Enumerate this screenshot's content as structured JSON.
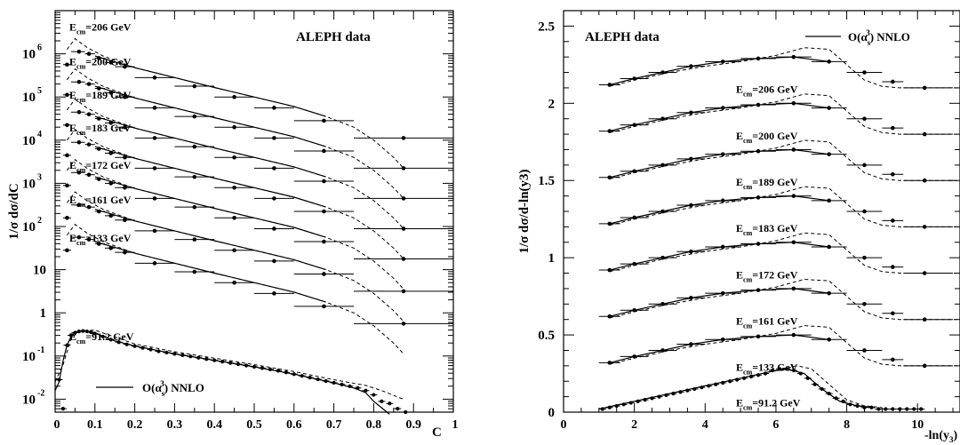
{
  "chart_data": [
    {
      "type": "line",
      "title": "ALEPH data",
      "ylabel": "1/σ dσ/dC",
      "xlabel": "C",
      "xlim": [
        0,
        1
      ],
      "ylog": true,
      "yrange_decades": [
        -2.3,
        7.0
      ],
      "xticks": [
        "0",
        "0.1",
        "0.2",
        "0.3",
        "0.4",
        "0.5",
        "0.6",
        "0.7",
        "0.8",
        "0.9",
        "1"
      ],
      "yticks": [
        {
          "base": "10",
          "exp": "-2",
          "v": -2
        },
        {
          "base": "10",
          "exp": "-1",
          "v": -1
        },
        {
          "base": "1",
          "exp": "",
          "v": 0
        },
        {
          "base": "10",
          "exp": "",
          "v": 1
        },
        {
          "base": "10",
          "exp": "2",
          "v": 2
        },
        {
          "base": "10",
          "exp": "3",
          "v": 3
        },
        {
          "base": "10",
          "exp": "4",
          "v": 4
        },
        {
          "base": "10",
          "exp": "5",
          "v": 5
        },
        {
          "base": "10",
          "exp": "6",
          "v": 6
        }
      ],
      "legend": {
        "label": "O(α_s^3) NNLO",
        "position": "bottom-left"
      },
      "bins": [
        0.03,
        0.06,
        0.085,
        0.11,
        0.14,
        0.175,
        0.25,
        0.35,
        0.45,
        0.55,
        0.675,
        0.875
      ],
      "bin_edges": [
        0.02,
        0.04,
        0.075,
        0.1,
        0.125,
        0.15,
        0.2,
        0.3,
        0.4,
        0.5,
        0.6,
        0.75,
        1.0
      ],
      "series": [
        {
          "name": "E_cm=206 GeV",
          "label_main": "E",
          "label_sub": "cm",
          "label_rest": "=206 GeV",
          "offset": 6.3,
          "label_v": 6.62
        },
        {
          "name": "E_cm=200 GeV",
          "label_main": "E",
          "label_sub": "cm",
          "label_rest": "=200 GeV",
          "offset": 5.6,
          "label_v": 5.82
        },
        {
          "name": "E_cm=189 GeV",
          "label_main": "E",
          "label_sub": "cm",
          "label_rest": "=189 GeV",
          "offset": 4.9,
          "label_v": 5.05
        },
        {
          "name": "E_cm=183 GeV",
          "label_main": "E",
          "label_sub": "cm",
          "label_rest": "=183 GeV",
          "offset": 4.2,
          "label_v": 4.28
        },
        {
          "name": "E_cm=172 GeV",
          "label_main": "E",
          "label_sub": "cm",
          "label_rest": "=172 GeV",
          "offset": 3.5,
          "label_v": 3.42
        },
        {
          "name": "E_cm=161 GeV",
          "label_main": "E",
          "label_sub": "cm",
          "label_rest": "=161 GeV",
          "offset": 2.75,
          "label_v": 2.62
        },
        {
          "name": "E_cm=133 GeV",
          "label_main": "E",
          "label_sub": "cm",
          "label_rest": "=133 GeV",
          "offset": 2.0,
          "label_v": 1.73
        },
        {
          "name": "E_cm=91.2 GeV",
          "label_main": "E",
          "label_sub": "cm",
          "label_rest": "=91.2 GeV",
          "offset": 0,
          "label_v": -0.55
        }
      ],
      "shape_log10": [
        -0.55,
        -0.25,
        -0.3,
        -0.4,
        -0.5,
        -0.6,
        -0.85,
        -1.05,
        -1.3,
        -1.55,
        -1.85,
        -2.25
      ],
      "z_points": {
        "x": [
          0.01,
          0.02,
          0.03,
          0.04,
          0.05,
          0.06,
          0.07,
          0.08,
          0.09,
          0.1,
          0.12,
          0.14,
          0.16,
          0.18,
          0.2,
          0.22,
          0.24,
          0.26,
          0.28,
          0.3,
          0.32,
          0.34,
          0.36,
          0.38,
          0.4,
          0.42,
          0.44,
          0.46,
          0.48,
          0.5,
          0.52,
          0.54,
          0.56,
          0.58,
          0.6,
          0.62,
          0.64,
          0.66,
          0.68,
          0.7,
          0.72,
          0.74,
          0.76,
          0.78,
          0.8,
          0.82,
          0.84,
          0.86,
          0.88
        ],
        "log10y": [
          -1.55,
          -2.22,
          -0.75,
          -0.52,
          -0.46,
          -0.43,
          -0.42,
          -0.43,
          -0.45,
          -0.48,
          -0.55,
          -0.62,
          -0.68,
          -0.73,
          -0.77,
          -0.81,
          -0.85,
          -0.89,
          -0.92,
          -0.95,
          -0.98,
          -1.01,
          -1.04,
          -1.07,
          -1.1,
          -1.13,
          -1.16,
          -1.19,
          -1.22,
          -1.25,
          -1.28,
          -1.31,
          -1.34,
          -1.38,
          -1.42,
          -1.46,
          -1.5,
          -1.54,
          -1.58,
          -1.62,
          -1.66,
          -1.7,
          -1.74,
          -1.8,
          -1.9,
          -2.05,
          -2.1,
          -2.22,
          -2.3
        ]
      },
      "z_curve": {
        "x": [
          0.0,
          0.01,
          0.02,
          0.03,
          0.04,
          0.05,
          0.06,
          0.08,
          0.1,
          0.15,
          0.2,
          0.3,
          0.4,
          0.5,
          0.6,
          0.7,
          0.75,
          0.78
        ],
        "log10y": [
          -1.8,
          -1.6,
          -1.1,
          -0.75,
          -0.55,
          -0.46,
          -0.43,
          -0.42,
          -0.47,
          -0.65,
          -0.77,
          -0.95,
          -1.1,
          -1.25,
          -1.42,
          -1.62,
          -1.74,
          -1.85
        ]
      },
      "z_curve_tail": {
        "x": [
          0.78,
          0.8,
          0.82,
          0.84
        ],
        "log10y": [
          -1.85,
          -2.05,
          -2.2,
          -2.35
        ]
      },
      "z_dash": {
        "x": [
          0.0,
          0.02,
          0.04,
          0.06,
          0.1,
          0.2,
          0.3,
          0.4,
          0.5,
          0.6,
          0.7,
          0.78,
          0.82,
          0.86,
          0.875
        ],
        "log10y": [
          -1.6,
          -1.2,
          -0.6,
          -0.42,
          -0.4,
          -0.72,
          -0.9,
          -1.05,
          -1.2,
          -1.36,
          -1.55,
          -1.68,
          -1.8,
          -1.95,
          -2.0
        ]
      },
      "hi_dash": {
        "x": [
          0.03,
          0.05,
          0.08,
          0.12,
          0.2,
          0.3,
          0.4,
          0.5,
          0.6,
          0.68,
          0.75,
          0.8,
          0.85,
          0.875
        ],
        "log10y": [
          -0.2,
          0.05,
          -0.15,
          -0.35,
          -0.62,
          -0.85,
          -1.08,
          -1.3,
          -1.52,
          -1.75,
          -2.0,
          -2.3,
          -2.7,
          -2.95
        ]
      },
      "hi_solid": {
        "x": [
          0.1,
          0.2,
          0.3,
          0.4,
          0.5,
          0.6,
          0.68
        ],
        "log10y": [
          -0.35,
          -0.62,
          -0.85,
          -1.08,
          -1.3,
          -1.52,
          -1.75
        ]
      }
    },
    {
      "type": "line",
      "title": "ALEPH data",
      "ylabel": "1/σ dσ/d-ln(y3)",
      "xlabel": "-ln(y3)",
      "xlim": [
        0,
        11.2
      ],
      "ylim": [
        0,
        2.6
      ],
      "xticks": [
        "0",
        "2",
        "4",
        "6",
        "8",
        "10"
      ],
      "yticks": [
        "0",
        "0.5",
        "1",
        "1.5",
        "2",
        "2.5"
      ],
      "legend": {
        "label": "O(α_s^3) NNLO",
        "position": "top-right"
      },
      "x_hi": [
        1.3,
        2.0,
        2.8,
        3.6,
        4.5,
        5.5,
        6.5,
        7.5,
        8.5,
        9.3,
        10.2
      ],
      "bin_edges": [
        1.0,
        1.6,
        2.4,
        3.2,
        4.0,
        5.0,
        6.0,
        7.0,
        8.0,
        9.0,
        9.6,
        11.0
      ],
      "series": [
        {
          "name": "E_cm=206 GeV",
          "label_main": "E",
          "label_sub": "cm",
          "label_rest": "=206 GeV",
          "offset": 1.8,
          "label_x": 5.5,
          "label_v": 2.09
        },
        {
          "name": "E_cm=200 GeV",
          "label_main": "E",
          "label_sub": "cm",
          "label_rest": "=200 GeV",
          "offset": 1.5,
          "label_x": 5.5,
          "label_v": 1.79
        },
        {
          "name": "E_cm=189 GeV",
          "label_main": "E",
          "label_sub": "cm",
          "label_rest": "=189 GeV",
          "offset": 1.2,
          "label_x": 5.5,
          "label_v": 1.49
        },
        {
          "name": "E_cm=183 GeV",
          "label_main": "E",
          "label_sub": "cm",
          "label_rest": "=183 GeV",
          "offset": 0.9,
          "label_x": 5.5,
          "label_v": 1.19
        },
        {
          "name": "E_cm=172 GeV",
          "label_main": "E",
          "label_sub": "cm",
          "label_rest": "=172 GeV",
          "offset": 0.6,
          "label_x": 5.5,
          "label_v": 0.89
        },
        {
          "name": "E_cm=161 GeV",
          "label_main": "E",
          "label_sub": "cm",
          "label_rest": "=161 GeV",
          "offset": 0.3,
          "label_x": 5.5,
          "label_v": 0.59
        },
        {
          "name": "E_cm=133 GeV",
          "label_main": "E",
          "label_sub": "cm",
          "label_rest": "=133 GeV",
          "offset": 0.0,
          "label_x": 5.5,
          "label_v": 0.29
        },
        {
          "name": "E_cm=91.2 GeV",
          "label_main": "E",
          "label_sub": "cm",
          "label_rest": "=91.2 GeV",
          "offset": 0,
          "label_x": 5.5,
          "label_v": 0.06
        }
      ],
      "shape_hi": [
        0.32,
        0.36,
        0.4,
        0.44,
        0.47,
        0.49,
        0.5,
        0.47,
        0.4,
        0.34,
        0.3
      ],
      "shape_dash_x": [
        1.3,
        2.0,
        3.0,
        4.0,
        5.0,
        6.0,
        6.8,
        7.5,
        8.0,
        8.5,
        9.0,
        9.5,
        10.0,
        11.2
      ],
      "shape_dash_y": [
        0.31,
        0.35,
        0.4,
        0.44,
        0.47,
        0.51,
        0.56,
        0.55,
        0.45,
        0.35,
        0.31,
        0.3,
        0.3,
        0.3
      ],
      "z_points": {
        "x": [
          1.1,
          1.3,
          1.5,
          1.7,
          1.9,
          2.1,
          2.3,
          2.5,
          2.7,
          2.9,
          3.1,
          3.3,
          3.5,
          3.7,
          3.9,
          4.1,
          4.3,
          4.5,
          4.7,
          4.9,
          5.1,
          5.3,
          5.5,
          5.7,
          5.9,
          6.1,
          6.3,
          6.5,
          6.7,
          6.9,
          7.1,
          7.3,
          7.5,
          7.7,
          7.9,
          8.1,
          8.3,
          8.5,
          8.7,
          8.9,
          9.1,
          9.3,
          9.5,
          9.7,
          9.9,
          10.1
        ],
        "y": [
          0.02,
          0.03,
          0.04,
          0.05,
          0.06,
          0.07,
          0.08,
          0.09,
          0.1,
          0.11,
          0.12,
          0.13,
          0.14,
          0.15,
          0.16,
          0.17,
          0.18,
          0.19,
          0.2,
          0.21,
          0.22,
          0.23,
          0.24,
          0.25,
          0.27,
          0.28,
          0.28,
          0.27,
          0.25,
          0.22,
          0.18,
          0.15,
          0.12,
          0.09,
          0.07,
          0.05,
          0.04,
          0.03,
          0.03,
          0.02,
          0.02,
          0.02,
          0.02,
          0.02,
          0.02,
          0.02
        ]
      },
      "z_solid": {
        "x": [
          1.0,
          2.0,
          3.0,
          4.0,
          5.0,
          5.8,
          6.3,
          6.8,
          7.3,
          7.8,
          8.3,
          8.8
        ],
        "y": [
          0.02,
          0.07,
          0.12,
          0.17,
          0.22,
          0.26,
          0.28,
          0.25,
          0.15,
          0.07,
          0.04,
          0.03
        ]
      },
      "z_dash": {
        "x": [
          1.0,
          2.0,
          3.0,
          4.0,
          5.0,
          6.0,
          6.6,
          7.0,
          7.5,
          8.0,
          8.5,
          9.0
        ],
        "y": [
          0.02,
          0.07,
          0.12,
          0.17,
          0.22,
          0.27,
          0.3,
          0.28,
          0.18,
          0.08,
          0.04,
          0.03
        ]
      }
    }
  ]
}
